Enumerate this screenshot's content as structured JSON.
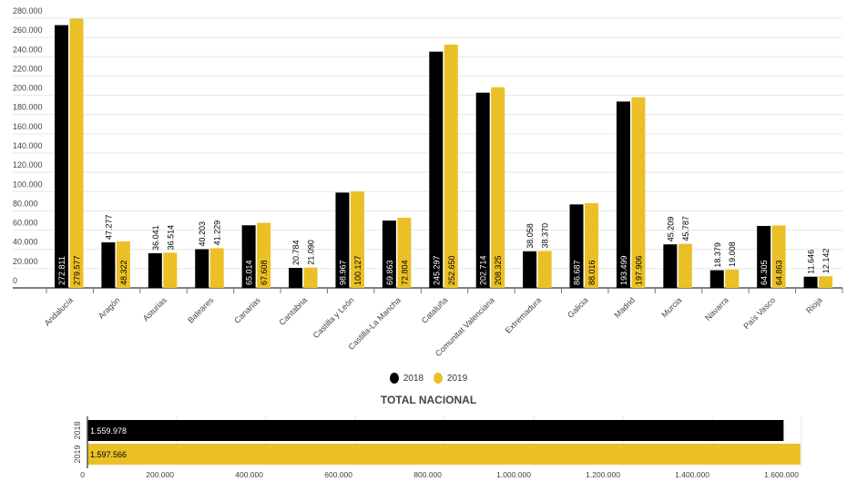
{
  "chart_data": [
    {
      "type": "bar",
      "categories": [
        "Andalucía",
        "Aragón",
        "Asturias",
        "Baleares",
        "Canarias",
        "Cantabria",
        "Castilla y León",
        "Castilla-La Mancha",
        "Cataluña",
        "Comunitat Valenciana",
        "Extremadura",
        "Galicia",
        "Madrid",
        "Murcia",
        "Navarra",
        "País Vasco",
        "Rioja"
      ],
      "series": [
        {
          "name": "2018",
          "color": "#000000",
          "values": [
            272811,
            47277,
            36041,
            40203,
            65014,
            20784,
            98967,
            69863,
            245297,
            202714,
            38058,
            86687,
            193499,
            45209,
            18379,
            64305,
            11646
          ],
          "labels": [
            "272.811",
            "47.277",
            "36.041",
            "40.203",
            "65.014",
            "20.784",
            "98.967",
            "69.863",
            "245.297",
            "202.714",
            "38.058",
            "86.687",
            "193.499",
            "45.209",
            "18.379",
            "64.305",
            "11.646"
          ]
        },
        {
          "name": "2019",
          "color": "#ebc026",
          "values": [
            279577,
            48322,
            36514,
            41229,
            67608,
            21090,
            100127,
            72804,
            252650,
            208325,
            38370,
            88016,
            197906,
            45787,
            19008,
            64863,
            12142
          ],
          "labels": [
            "279.577",
            "48.322",
            "36.514",
            "41.229",
            "67.608",
            "21.090",
            "100.127",
            "72.804",
            "252.650",
            "208.325",
            "38.370",
            "88.016",
            "197.906",
            "45.787",
            "19.008",
            "64.863",
            "12.142"
          ]
        }
      ],
      "ylim": [
        0,
        280000
      ],
      "yticks": [
        0,
        20000,
        40000,
        60000,
        80000,
        100000,
        120000,
        140000,
        160000,
        180000,
        200000,
        220000,
        240000,
        260000,
        280000
      ],
      "ytick_labels": [
        "0",
        "20.000",
        "40.000",
        "60.000",
        "80.000",
        "100.000",
        "120.000",
        "140.000",
        "160.000",
        "180.000",
        "200.000",
        "220.000",
        "240.000",
        "260.000",
        "280.000"
      ],
      "grid": true
    },
    {
      "type": "bar",
      "orientation": "horizontal",
      "title": "TOTAL NACIONAL",
      "categories": [
        "2018",
        "2019"
      ],
      "values": [
        1559978,
        1597566
      ],
      "labels": [
        "1.559.978",
        "1.597.566"
      ],
      "colors": [
        "#000000",
        "#ebc026"
      ],
      "xlim": [
        0,
        1600000
      ],
      "xticks": [
        0,
        200000,
        400000,
        600000,
        800000,
        1000000,
        1200000,
        1400000,
        1600000
      ],
      "xtick_labels": [
        "0",
        "200.000",
        "400.000",
        "600.000",
        "800.000",
        "1.000.000",
        "1.200.000",
        "1.400.000",
        "1.600.000"
      ]
    }
  ],
  "legend": {
    "items": [
      "2018",
      "2019"
    ],
    "placement": "bottom"
  }
}
